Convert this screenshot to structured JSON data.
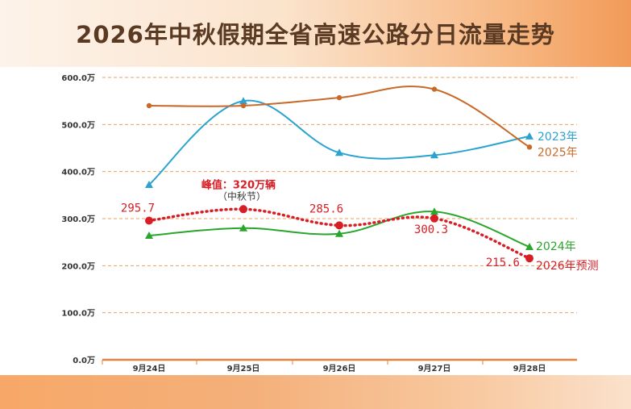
{
  "header": {
    "title": "2026年中秋假期全省高速公路分日流量走势"
  },
  "chart_data": {
    "type": "line",
    "categories": [
      "9月24日",
      "9月25日",
      "9月26日",
      "9月27日",
      "9月28日"
    ],
    "y_ticks": [
      "0.0万",
      "100.0万",
      "200.0万",
      "300.0万",
      "400.0万",
      "500.0万",
      "600.0万"
    ],
    "ylim": [
      0,
      600
    ],
    "grid": true,
    "series": [
      {
        "name": "2023年",
        "color": "#2aa3d0",
        "marker": "triangle",
        "values": [
          372,
          550,
          440,
          435,
          475
        ]
      },
      {
        "name": "2025年",
        "color": "#c8692a",
        "marker": "circle",
        "values": [
          540,
          540,
          557,
          575,
          452
        ]
      },
      {
        "name": "2024年",
        "color": "#2aa62c",
        "marker": "triangle",
        "values": [
          264,
          280,
          268,
          315,
          240
        ]
      },
      {
        "name": "2026年预测",
        "color": "#d81e25",
        "marker": "big-circle",
        "dashed": true,
        "values": [
          295.7,
          320,
          285.6,
          300.3,
          215.6
        ]
      }
    ],
    "data_labels": [
      "295.7",
      "285.6",
      "300.3",
      "215.6"
    ],
    "annotation": {
      "text": "峰值：320万辆",
      "subtext": "（中秋节）"
    }
  }
}
